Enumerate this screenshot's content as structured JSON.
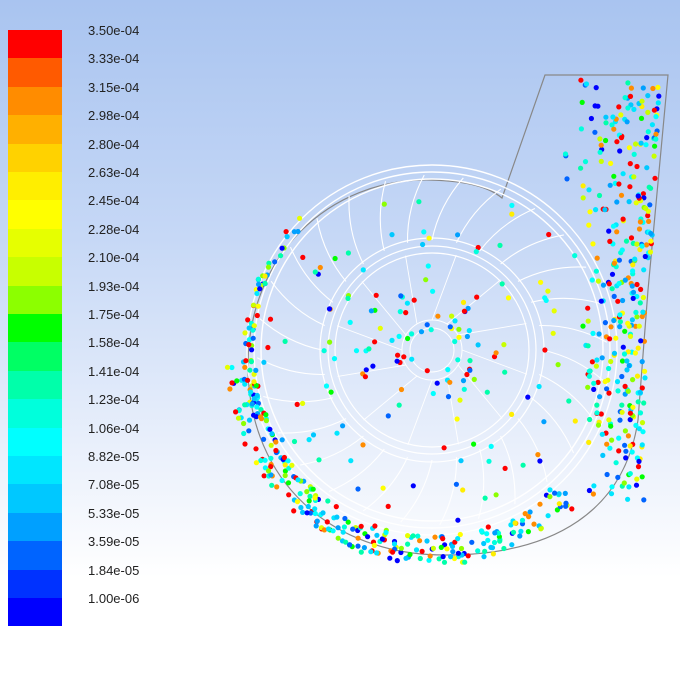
{
  "chart_data": {
    "type": "scatter",
    "title": "",
    "colorbar": {
      "tick_labels": [
        "3.50e-04",
        "3.33e-04",
        "3.15e-04",
        "2.98e-04",
        "2.80e-04",
        "2.63e-04",
        "2.45e-04",
        "2.28e-04",
        "2.10e-04",
        "1.93e-04",
        "1.75e-04",
        "1.58e-04",
        "1.41e-04",
        "1.23e-04",
        "1.06e-04",
        "8.82e-05",
        "7.08e-05",
        "5.33e-05",
        "3.59e-05",
        "1.84e-05",
        "1.00e-06"
      ],
      "colors": [
        "#ff0000",
        "#ff5a00",
        "#ff8c00",
        "#ffb000",
        "#ffd200",
        "#ffee00",
        "#ffff00",
        "#e6ff00",
        "#c8ff00",
        "#8cff00",
        "#00ff00",
        "#00ff64",
        "#00ffaa",
        "#00ffdc",
        "#00ffff",
        "#00e6ff",
        "#00c8ff",
        "#00a0ff",
        "#0064ff",
        "#0032ff",
        "#0000ff"
      ],
      "min": 1e-06,
      "max": 0.00035
    },
    "particle_color_mix": "mostly low-to-mid values near volute walls, scattered high values throughout",
    "geometry": "centrifugal fan volute with impeller blades and outlet duct at top-right",
    "grid": false
  }
}
